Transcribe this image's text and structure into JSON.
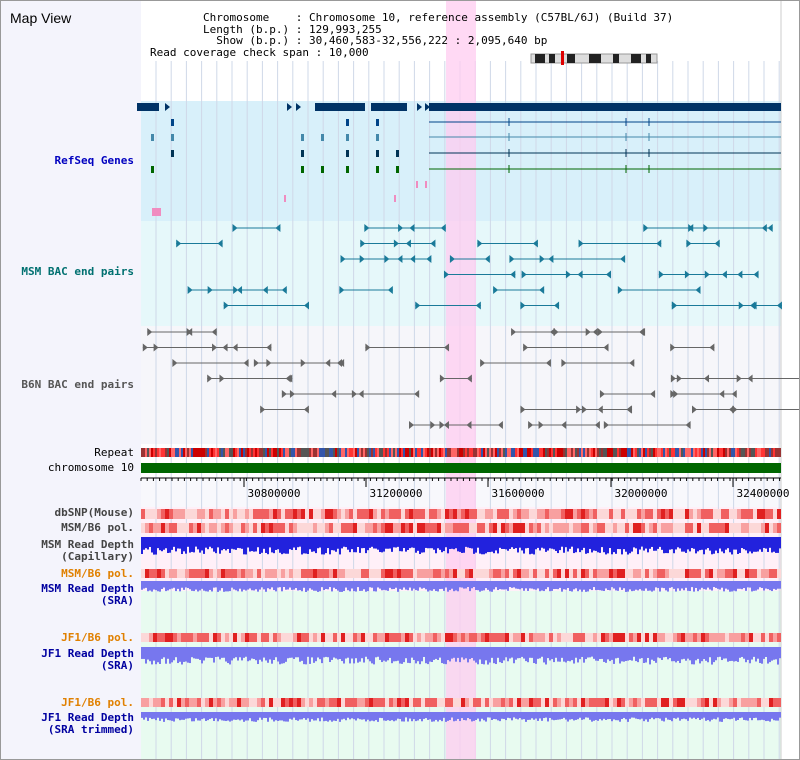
{
  "header": {
    "title": "Map View",
    "chromosome_key": "Chromosome",
    "chromosome_value": "Chromosome 10, reference assembly (C57BL/6J) (Build 37)",
    "length_key": "Length (b.p.)",
    "length_value": "129,993,255",
    "show_key": "Show (b.p.)",
    "show_value": "30,460,583-32,556,222 : 2,095,640 bp",
    "coverage_key": "Read coverage check span",
    "coverage_value": "10,000"
  },
  "tracks": {
    "refseq": "RefSeq Genes",
    "msm_bac": "MSM BAC end pairs",
    "b6n_bac": "B6N BAC end pairs",
    "repeat": "Repeat",
    "chromosome": "chromosome 10",
    "dbsnp": "dbSNP(Mouse)",
    "msm_pol_1": "MSM/B6 pol.",
    "msm_depth_cap_1": "MSM Read Depth",
    "msm_depth_cap_2": "(Capillary)",
    "msm_pol_2": "MSM/B6 pol.",
    "msm_depth_sra_1": "MSM Read Depth",
    "msm_depth_sra_2": "(SRA)",
    "jf1_pol_1": "JF1/B6 pol.",
    "jf1_depth_sra_1": "JF1 Read Depth",
    "jf1_depth_sra_2": "(SRA)",
    "jf1_pol_2": "JF1/B6 pol.",
    "jf1_depth_trim_1": "JF1 Read Depth",
    "jf1_depth_trim_2": "(SRA trimmed)"
  },
  "axis": {
    "ticks": [
      "30800000",
      "31200000",
      "31600000",
      "32000000",
      "32400000"
    ]
  },
  "colors": {
    "refseq_label": "#0000c0",
    "msm_bac_label": "#007070",
    "b6n_bac_label": "#555555",
    "pol_label_msm": "#444444",
    "pol_label_orange": "#e08000",
    "depth_label": "#0000a0",
    "highlight": "#ffccf0",
    "chromosome_bar": "#006600"
  }
}
